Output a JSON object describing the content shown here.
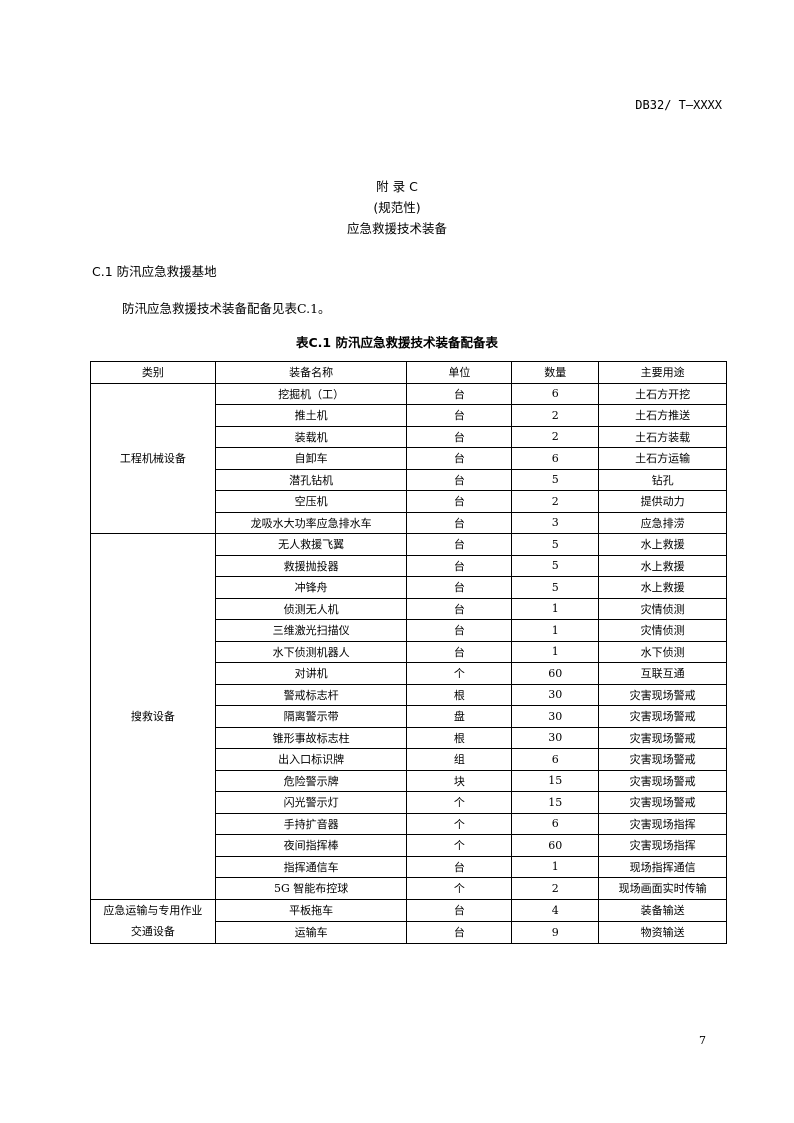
{
  "header": {
    "doc_id": "DB32/ T—XXXX"
  },
  "appendix": {
    "title": "附  录  C",
    "type": "(规范性)",
    "subtitle": "应急救援技术装备"
  },
  "section": {
    "title": "C.1  防汛应急救援基地",
    "text": "防汛应急救援技术装备配备见表C.1。"
  },
  "table": {
    "caption": "表C.1  防汛应急救援技术装备配备表",
    "headers": [
      "类别",
      "装备名称",
      "单位",
      "数量",
      "主要用途"
    ],
    "groups": [
      {
        "category": "工程机械设备",
        "rows": [
          [
            "挖掘机（工）",
            "台",
            "6",
            "土石方开挖"
          ],
          [
            "推土机",
            "台",
            "2",
            "土石方推送"
          ],
          [
            "装载机",
            "台",
            "2",
            "土石方装载"
          ],
          [
            "自卸车",
            "台",
            "6",
            "土石方运输"
          ],
          [
            "潜孔钻机",
            "台",
            "5",
            "钻孔"
          ],
          [
            "空压机",
            "台",
            "2",
            "提供动力"
          ],
          [
            "龙吸水大功率应急排水车",
            "台",
            "3",
            "应急排涝"
          ]
        ]
      },
      {
        "category": "搜救设备",
        "rows": [
          [
            "无人救援飞翼",
            "台",
            "5",
            "水上救援"
          ],
          [
            "救援抛投器",
            "台",
            "5",
            "水上救援"
          ],
          [
            "冲锋舟",
            "台",
            "5",
            "水上救援"
          ],
          [
            "侦测无人机",
            "台",
            "1",
            "灾情侦测"
          ],
          [
            "三维激光扫描仪",
            "台",
            "1",
            "灾情侦测"
          ],
          [
            "水下侦测机器人",
            "台",
            "1",
            "水下侦测"
          ],
          [
            "对讲机",
            "个",
            "60",
            "互联互通"
          ],
          [
            "警戒标志杆",
            "根",
            "30",
            "灾害现场警戒"
          ],
          [
            "隔离警示带",
            "盘",
            "30",
            "灾害现场警戒"
          ],
          [
            "锥形事故标志柱",
            "根",
            "30",
            "灾害现场警戒"
          ],
          [
            "出入口标识牌",
            "组",
            "6",
            "灾害现场警戒"
          ],
          [
            "危险警示牌",
            "块",
            "15",
            "灾害现场警戒"
          ],
          [
            "闪光警示灯",
            "个",
            "15",
            "灾害现场警戒"
          ],
          [
            "手持扩音器",
            "个",
            "6",
            "灾害现场指挥"
          ],
          [
            "夜间指挥棒",
            "个",
            "60",
            "灾害现场指挥"
          ],
          [
            "指挥通信车",
            "台",
            "1",
            "现场指挥通信"
          ],
          [
            "5G 智能布控球",
            "个",
            "2",
            "现场画面实时传输"
          ]
        ]
      },
      {
        "category": "应急运输与专用作业交通设备",
        "category_lines": [
          "应急运输与专用作业",
          "交通设备"
        ],
        "rows": [
          [
            "平板拖车",
            "台",
            "4",
            "装备输送"
          ],
          [
            "运输车",
            "台",
            "9",
            "物资输送"
          ]
        ]
      }
    ]
  },
  "footer": {
    "page_number": "7"
  }
}
